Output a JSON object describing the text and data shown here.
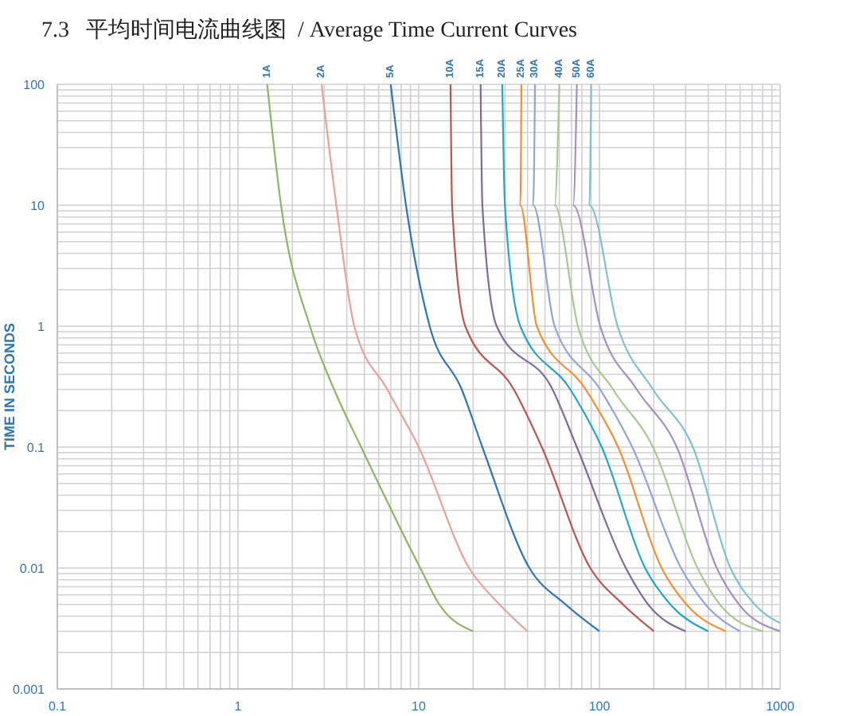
{
  "chart_data": {
    "type": "line",
    "title": "7.3   平均时间电流曲线图  / Average Time Current Curves",
    "ylabel": "TIME IN SECONDS",
    "log": "xy",
    "grid": true,
    "marker": "none",
    "xlim": [
      0.1,
      1000
    ],
    "xticks": [
      0.1,
      1,
      10,
      100,
      1000
    ],
    "ylim": [
      0.001,
      100
    ],
    "yticks": [
      0.001,
      0.01,
      0.1,
      1,
      10,
      100
    ],
    "series": [
      {
        "name": "1A",
        "color": "#8cb661",
        "x": [
          1.45,
          1.73,
          2.5,
          3.4,
          4.8,
          10.2,
          13,
          20
        ],
        "values": [
          100,
          10,
          1,
          0.3,
          0.1,
          0.01,
          0.005,
          0.003
        ]
      },
      {
        "name": "2A",
        "color": "#e8a295",
        "x": [
          2.9,
          3.5,
          4.4,
          6.7,
          10,
          19,
          28,
          40
        ],
        "values": [
          100,
          10,
          1,
          0.3,
          0.1,
          0.01,
          0.005,
          0.003
        ]
      },
      {
        "name": "5A",
        "color": "#2f77b4",
        "x": [
          7,
          8.5,
          11.5,
          17.3,
          22.5,
          41,
          65,
          100
        ],
        "values": [
          100,
          10,
          1,
          0.3,
          0.1,
          0.01,
          0.005,
          0.003
        ]
      },
      {
        "name": "10A",
        "color": "#b9574f",
        "x": [
          15,
          15.3,
          18.1,
          33.6,
          48,
          89,
          135,
          200
        ],
        "values": [
          100,
          10,
          1,
          0.3,
          0.1,
          0.01,
          0.005,
          0.003
        ]
      },
      {
        "name": "15A",
        "color": "#80699b",
        "x": [
          22,
          22.5,
          27,
          55,
          75,
          140,
          186,
          300
        ],
        "values": [
          100,
          10,
          1,
          0.3,
          0.1,
          0.01,
          0.005,
          0.003
        ]
      },
      {
        "name": "20A",
        "color": "#23a6c4",
        "x": [
          29,
          30,
          36.5,
          69,
          103,
          179,
          247,
          400
        ],
        "values": [
          100,
          10,
          1,
          0.3,
          0.1,
          0.01,
          0.005,
          0.003
        ]
      },
      {
        "name": "25A",
        "color": "#f38f2e",
        "x": [
          37,
          36.5,
          45,
          84,
          127,
          221,
          303,
          500
        ],
        "values": [
          100,
          10,
          1,
          0.3,
          0.1,
          0.01,
          0.005,
          0.003
        ]
      },
      {
        "name": "30A",
        "color": "#8fa5d6",
        "x": [
          44,
          43,
          56.5,
          101,
          152,
          283,
          386,
          600
        ],
        "values": [
          100,
          10,
          1,
          0.3,
          0.1,
          0.01,
          0.005,
          0.003
        ]
      },
      {
        "name": "40A",
        "color": "#a9c78f",
        "x": [
          60,
          56.5,
          76,
          119,
          198,
          349,
          464,
          800
        ],
        "values": [
          100,
          10,
          1,
          0.3,
          0.1,
          0.01,
          0.005,
          0.003
        ]
      },
      {
        "name": "50A",
        "color": "#a58fc2",
        "x": [
          75,
          71.6,
          101,
          161,
          268,
          446,
          592,
          1000
        ],
        "values": [
          100,
          10,
          1,
          0.3,
          0.1,
          0.01,
          0.005,
          0.003
        ]
      },
      {
        "name": "60A",
        "color": "#7fc0d2",
        "x": [
          90,
          88,
          126,
          198,
          329,
          531,
          724,
          1000
        ],
        "values": [
          100,
          10,
          1,
          0.3,
          0.1,
          0.01,
          0.005,
          0.0035
        ]
      }
    ]
  }
}
